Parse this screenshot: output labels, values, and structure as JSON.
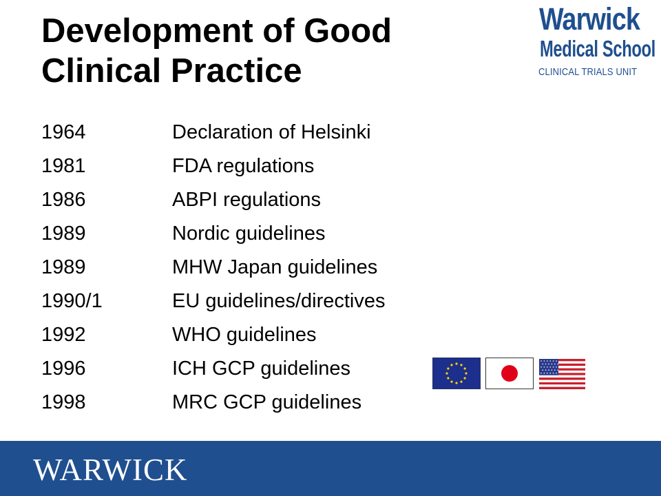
{
  "title": {
    "line1": "Development of Good",
    "line2": "Clinical Practice"
  },
  "logo": {
    "name": "Warwick",
    "school": "Medical School",
    "unit": "CLINICAL TRIALS UNIT"
  },
  "timeline": [
    {
      "year": "1964",
      "event": "Declaration of Helsinki"
    },
    {
      "year": "1981",
      "event": "FDA regulations"
    },
    {
      "year": "1986",
      "event": "ABPI regulations"
    },
    {
      "year": "1989",
      "event": "Nordic guidelines"
    },
    {
      "year": "1989",
      "event": "MHW Japan guidelines"
    },
    {
      "year": "1990/1",
      "event": "EU guidelines/directives"
    },
    {
      "year": "1992",
      "event": "WHO guidelines"
    },
    {
      "year": "1996",
      "event": "ICH GCP guidelines"
    },
    {
      "year": "1998",
      "event": "MRC GCP guidelines"
    }
  ],
  "flags": [
    "eu-flag-icon",
    "japan-flag-icon",
    "us-flag-icon"
  ],
  "footer": {
    "wordmark": "WARWICK"
  },
  "colors": {
    "brand_blue": "#1f4f8f",
    "eu_blue": "#1d2f8c",
    "eu_star": "#ffd200",
    "japan_red": "#e0001a",
    "us_red": "#c8202e",
    "us_blue": "#2a3a8c"
  }
}
